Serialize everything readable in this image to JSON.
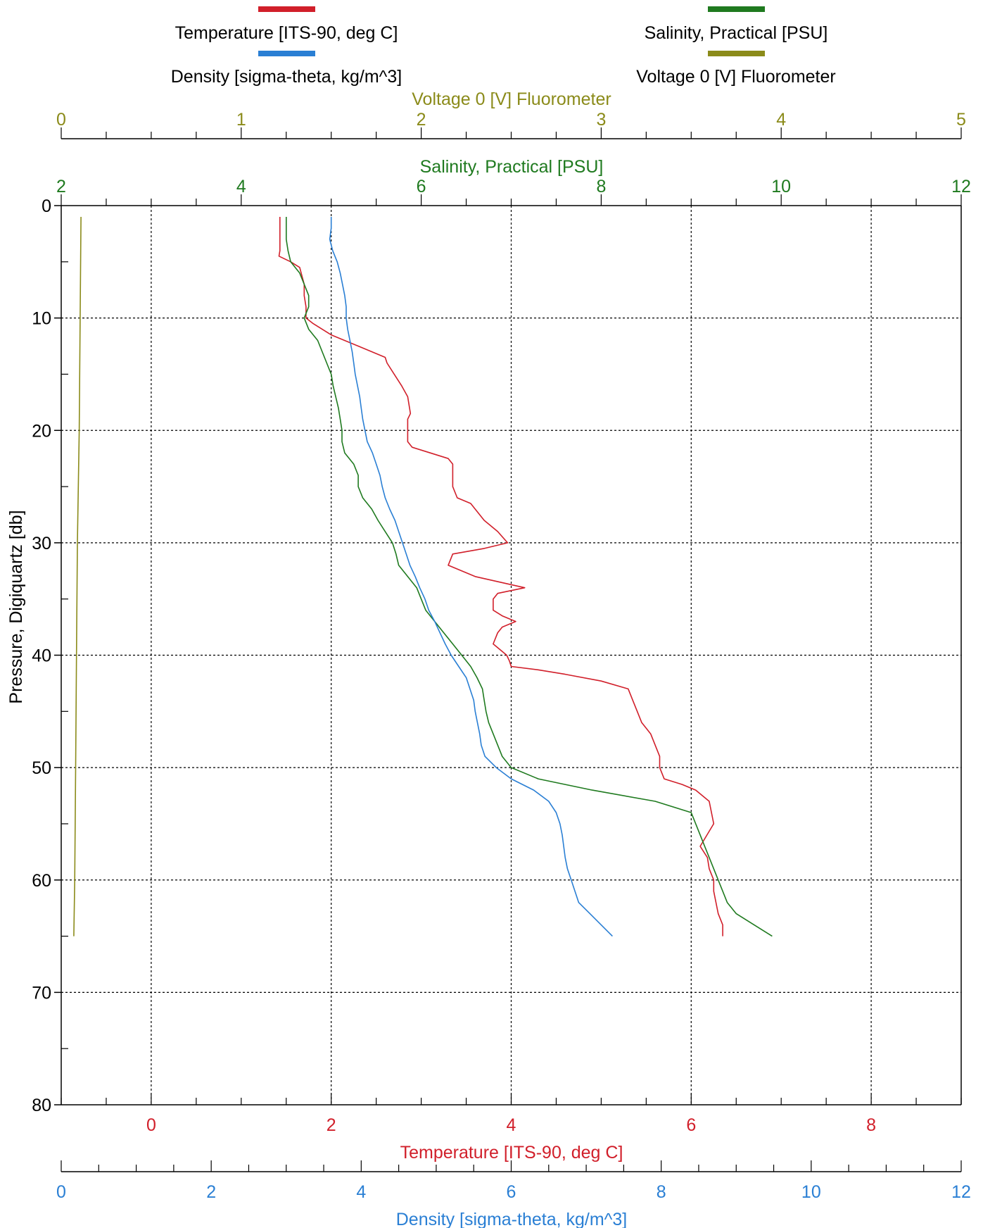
{
  "chart_data": {
    "type": "line",
    "colors": {
      "temperature": "#d11f2a",
      "salinity": "#1f7a1f",
      "density": "#2a7fd4",
      "fluorometer": "#8b8b1a"
    },
    "legend": {
      "placement": "top",
      "entries": [
        {
          "key": "temperature",
          "label": "Temperature [ITS-90, deg C]"
        },
        {
          "key": "salinity",
          "label": "Salinity, Practical [PSU]"
        },
        {
          "key": "density",
          "label": "Density [sigma-theta, kg/m^3]"
        },
        {
          "key": "fluorometer",
          "label": "Voltage 0 [V] Fluorometer"
        }
      ]
    },
    "grid": true,
    "y_axis": {
      "label": "Pressure, Digiquartz [db]",
      "range": [
        0,
        80
      ],
      "inverted": true,
      "ticks": [
        0,
        10,
        20,
        30,
        40,
        50,
        60,
        70,
        80
      ]
    },
    "x_axes": [
      {
        "key": "fluorometer",
        "label": "Voltage 0 [V] Fluorometer",
        "range": [
          0,
          5
        ],
        "ticks": [
          0,
          1,
          2,
          3,
          4,
          5
        ],
        "position": "top-outer"
      },
      {
        "key": "salinity",
        "label": "Salinity, Practical [PSU]",
        "range": [
          2,
          12
        ],
        "ticks": [
          2,
          4,
          6,
          8,
          10,
          12
        ],
        "position": "top-inner"
      },
      {
        "key": "temperature",
        "label": "Temperature [ITS-90, deg C]",
        "range": [
          -1,
          9
        ],
        "ticks": [
          0,
          2,
          4,
          6,
          8
        ],
        "position": "bottom-inner"
      },
      {
        "key": "density",
        "label": "Density [sigma-theta, kg/m^3]",
        "range": [
          0,
          12
        ],
        "ticks": [
          0,
          2,
          4,
          6,
          8,
          10,
          12
        ],
        "position": "bottom-outer"
      }
    ],
    "series": [
      {
        "key": "temperature",
        "name": "Temperature [ITS-90, deg C]",
        "points": [
          [
            1.43,
            1
          ],
          [
            1.43,
            2
          ],
          [
            1.43,
            4
          ],
          [
            1.42,
            4.5
          ],
          [
            1.55,
            5
          ],
          [
            1.65,
            5.5
          ],
          [
            1.7,
            7
          ],
          [
            1.7,
            8
          ],
          [
            1.72,
            9
          ],
          [
            1.72,
            10
          ],
          [
            1.8,
            10.5
          ],
          [
            2.0,
            11.5
          ],
          [
            2.3,
            12.5
          ],
          [
            2.6,
            13.5
          ],
          [
            2.62,
            14
          ],
          [
            2.7,
            15
          ],
          [
            2.78,
            16
          ],
          [
            2.85,
            17
          ],
          [
            2.87,
            18
          ],
          [
            2.88,
            18.5
          ],
          [
            2.85,
            19
          ],
          [
            2.85,
            20
          ],
          [
            2.85,
            21
          ],
          [
            2.9,
            21.5
          ],
          [
            3.1,
            22
          ],
          [
            3.3,
            22.5
          ],
          [
            3.35,
            23
          ],
          [
            3.35,
            24
          ],
          [
            3.35,
            25
          ],
          [
            3.4,
            26
          ],
          [
            3.55,
            26.5
          ],
          [
            3.6,
            27
          ],
          [
            3.7,
            28
          ],
          [
            3.85,
            29
          ],
          [
            3.96,
            30
          ],
          [
            3.7,
            30.5
          ],
          [
            3.35,
            31
          ],
          [
            3.3,
            32
          ],
          [
            3.6,
            33
          ],
          [
            4.15,
            34
          ],
          [
            3.85,
            34.5
          ],
          [
            3.8,
            35
          ],
          [
            3.8,
            36
          ],
          [
            3.9,
            36.5
          ],
          [
            4.05,
            37
          ],
          [
            3.9,
            37.5
          ],
          [
            3.85,
            38
          ],
          [
            3.8,
            39
          ],
          [
            3.95,
            40
          ],
          [
            3.98,
            40.5
          ],
          [
            4.0,
            41
          ],
          [
            4.3,
            41.3
          ],
          [
            4.6,
            41.7
          ],
          [
            5.0,
            42.3
          ],
          [
            5.3,
            43
          ],
          [
            5.35,
            44
          ],
          [
            5.4,
            45
          ],
          [
            5.45,
            46
          ],
          [
            5.5,
            46.5
          ],
          [
            5.55,
            47
          ],
          [
            5.6,
            48
          ],
          [
            5.65,
            49
          ],
          [
            5.65,
            50
          ],
          [
            5.7,
            51
          ],
          [
            5.9,
            51.5
          ],
          [
            6.05,
            52
          ],
          [
            6.2,
            53
          ],
          [
            6.25,
            55
          ],
          [
            6.1,
            57
          ],
          [
            6.18,
            58
          ],
          [
            6.2,
            59
          ],
          [
            6.25,
            60
          ],
          [
            6.25,
            61
          ],
          [
            6.3,
            63
          ],
          [
            6.35,
            64
          ],
          [
            6.35,
            65
          ]
        ]
      },
      {
        "key": "salinity",
        "name": "Salinity, Practical [PSU]",
        "points": [
          [
            4.5,
            1
          ],
          [
            4.5,
            3
          ],
          [
            4.52,
            4
          ],
          [
            4.55,
            5
          ],
          [
            4.65,
            6
          ],
          [
            4.7,
            7
          ],
          [
            4.75,
            8
          ],
          [
            4.75,
            9
          ],
          [
            4.7,
            10
          ],
          [
            4.75,
            11
          ],
          [
            4.85,
            12
          ],
          [
            4.9,
            13
          ],
          [
            4.95,
            14
          ],
          [
            5.0,
            15
          ],
          [
            5.02,
            16
          ],
          [
            5.05,
            17
          ],
          [
            5.08,
            18
          ],
          [
            5.1,
            19
          ],
          [
            5.12,
            20
          ],
          [
            5.12,
            21
          ],
          [
            5.15,
            22
          ],
          [
            5.25,
            23
          ],
          [
            5.3,
            24
          ],
          [
            5.3,
            25
          ],
          [
            5.35,
            26
          ],
          [
            5.45,
            27
          ],
          [
            5.52,
            28
          ],
          [
            5.6,
            29
          ],
          [
            5.68,
            30
          ],
          [
            5.72,
            31
          ],
          [
            5.75,
            32
          ],
          [
            5.85,
            33
          ],
          [
            5.95,
            34
          ],
          [
            6.0,
            35
          ],
          [
            6.05,
            36
          ],
          [
            6.15,
            37
          ],
          [
            6.25,
            38
          ],
          [
            6.35,
            39
          ],
          [
            6.45,
            40
          ],
          [
            6.55,
            41
          ],
          [
            6.62,
            42
          ],
          [
            6.68,
            43
          ],
          [
            6.7,
            44
          ],
          [
            6.72,
            45
          ],
          [
            6.75,
            46
          ],
          [
            6.8,
            47
          ],
          [
            6.85,
            48
          ],
          [
            6.9,
            49
          ],
          [
            7.0,
            50
          ],
          [
            7.3,
            51
          ],
          [
            7.9,
            52
          ],
          [
            8.6,
            53
          ],
          [
            9.0,
            54
          ],
          [
            9.05,
            55
          ],
          [
            9.1,
            56
          ],
          [
            9.15,
            57
          ],
          [
            9.2,
            58
          ],
          [
            9.25,
            59
          ],
          [
            9.3,
            60
          ],
          [
            9.35,
            61
          ],
          [
            9.4,
            62
          ],
          [
            9.5,
            63
          ],
          [
            9.7,
            64
          ],
          [
            9.9,
            65
          ]
        ]
      },
      {
        "key": "density",
        "name": "Density [sigma-theta, kg/m^3]",
        "points": [
          [
            3.6,
            1
          ],
          [
            3.6,
            2
          ],
          [
            3.58,
            3
          ],
          [
            3.62,
            4
          ],
          [
            3.68,
            5
          ],
          [
            3.72,
            6
          ],
          [
            3.75,
            7
          ],
          [
            3.78,
            8
          ],
          [
            3.8,
            9
          ],
          [
            3.8,
            10
          ],
          [
            3.82,
            11
          ],
          [
            3.85,
            12
          ],
          [
            3.88,
            13
          ],
          [
            3.9,
            14
          ],
          [
            3.92,
            15
          ],
          [
            3.95,
            16
          ],
          [
            3.98,
            17
          ],
          [
            4.0,
            18
          ],
          [
            4.02,
            19
          ],
          [
            4.05,
            20
          ],
          [
            4.08,
            21
          ],
          [
            4.15,
            22
          ],
          [
            4.2,
            23
          ],
          [
            4.25,
            24
          ],
          [
            4.28,
            25
          ],
          [
            4.32,
            26
          ],
          [
            4.38,
            27
          ],
          [
            4.45,
            28
          ],
          [
            4.5,
            29
          ],
          [
            4.55,
            30
          ],
          [
            4.6,
            31
          ],
          [
            4.65,
            32
          ],
          [
            4.72,
            33
          ],
          [
            4.78,
            34
          ],
          [
            4.85,
            35
          ],
          [
            4.9,
            36
          ],
          [
            4.98,
            37
          ],
          [
            5.05,
            38
          ],
          [
            5.12,
            39
          ],
          [
            5.2,
            40
          ],
          [
            5.3,
            41
          ],
          [
            5.4,
            42
          ],
          [
            5.45,
            43
          ],
          [
            5.5,
            44
          ],
          [
            5.52,
            45
          ],
          [
            5.55,
            46
          ],
          [
            5.58,
            47
          ],
          [
            5.6,
            48
          ],
          [
            5.65,
            49
          ],
          [
            5.8,
            50
          ],
          [
            6.0,
            51
          ],
          [
            6.3,
            52
          ],
          [
            6.5,
            53
          ],
          [
            6.6,
            54
          ],
          [
            6.65,
            55
          ],
          [
            6.68,
            56
          ],
          [
            6.7,
            57
          ],
          [
            6.72,
            58
          ],
          [
            6.75,
            59
          ],
          [
            6.8,
            60
          ],
          [
            6.85,
            61
          ],
          [
            6.9,
            62
          ],
          [
            7.05,
            63
          ],
          [
            7.2,
            64
          ],
          [
            7.35,
            65
          ]
        ]
      },
      {
        "key": "fluorometer",
        "name": "Voltage 0 [V] Fluorometer",
        "points": [
          [
            0.11,
            1
          ],
          [
            0.105,
            10
          ],
          [
            0.1,
            20
          ],
          [
            0.09,
            30
          ],
          [
            0.085,
            40
          ],
          [
            0.08,
            50
          ],
          [
            0.075,
            60
          ],
          [
            0.07,
            65
          ]
        ]
      }
    ]
  }
}
